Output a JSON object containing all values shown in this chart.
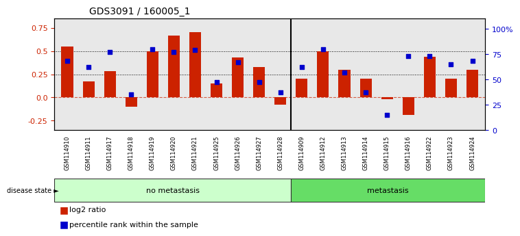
{
  "title": "GDS3091 / 160005_1",
  "samples": [
    "GSM114910",
    "GSM114911",
    "GSM114917",
    "GSM114918",
    "GSM114919",
    "GSM114920",
    "GSM114921",
    "GSM114925",
    "GSM114926",
    "GSM114927",
    "GSM114928",
    "GSM114909",
    "GSM114912",
    "GSM114913",
    "GSM114914",
    "GSM114915",
    "GSM114916",
    "GSM114922",
    "GSM114923",
    "GSM114924"
  ],
  "log2_ratio": [
    0.55,
    0.17,
    0.28,
    -0.1,
    0.5,
    0.67,
    0.7,
    0.15,
    0.43,
    0.33,
    -0.08,
    0.2,
    0.5,
    0.3,
    0.2,
    -0.02,
    -0.19,
    0.44,
    0.2,
    0.3
  ],
  "percentile_rank": [
    68,
    62,
    77,
    35,
    80,
    77,
    79,
    47,
    67,
    47,
    37,
    62,
    80,
    57,
    37,
    15,
    73,
    73,
    65,
    68
  ],
  "no_metastasis_count": 11,
  "metastasis_count": 9,
  "bar_color": "#CC2200",
  "dot_color": "#0000CC",
  "zero_line_color": "#CC2200",
  "dotted_line_color": "#333333",
  "ylim_left": [
    -0.35,
    0.85
  ],
  "yticks_left": [
    -0.25,
    0.0,
    0.25,
    0.5,
    0.75
  ],
  "ylim_right": [
    0,
    110
  ],
  "yticks_right": [
    0,
    25,
    50,
    75,
    100
  ],
  "ylabel_right_labels": [
    "0",
    "25",
    "50",
    "75",
    "100%"
  ],
  "no_metastasis_color": "#CCFFCC",
  "metastasis_color": "#66DD66",
  "label_log2": "log2 ratio",
  "label_pct": "percentile rank within the sample",
  "bg_color": "#E8E8E8"
}
